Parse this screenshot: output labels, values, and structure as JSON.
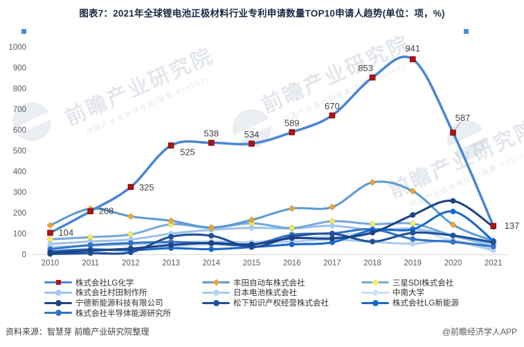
{
  "title": "图表7：2021年全球锂电池正极材料行业专利申请数量TOP10申请人趋势(单位：项，%)",
  "source": "资料来源：智慧芽 前瞻产业研究院整理",
  "credit": "@前瞻经济学人APP",
  "watermark": {
    "brand": "前瞻产业研究院",
    "sub": "中国产业咨询领导者(股票:839599)"
  },
  "chart_data": {
    "type": "line",
    "title": "2021年全球锂电池正极材料行业专利申请数量TOP10申请人趋势",
    "unit": "项，%",
    "x": [
      2010,
      2011,
      2012,
      2013,
      2014,
      2015,
      2016,
      2017,
      2018,
      2019,
      2020,
      2021
    ],
    "xlabel": "",
    "ylabel": "",
    "ylim": [
      0,
      1000
    ],
    "ytick_step": 100,
    "grid": false,
    "legend_position": "bottom",
    "smooth": true,
    "series": [
      {
        "name": "株式会社LG化学",
        "line_color": "#4a86d4",
        "marker": "square",
        "marker_color": "#b01311",
        "values": [
          104,
          208,
          325,
          525,
          538,
          534,
          589,
          670,
          853,
          941,
          587,
          137
        ],
        "show_labels": true
      },
      {
        "name": "丰田自动车株式会社",
        "line_color": "#5b9bd5",
        "marker": "diamond",
        "marker_color": "#efa431",
        "values": [
          140,
          220,
          183,
          162,
          130,
          166,
          221,
          228,
          347,
          305,
          143,
          65
        ]
      },
      {
        "name": "三星SDI株式会社",
        "line_color": "#74a9dd",
        "marker": "diamond",
        "marker_color": "#f7ef52",
        "values": [
          73,
          83,
          96,
          145,
          128,
          150,
          127,
          160,
          146,
          148,
          91,
          55
        ]
      },
      {
        "name": "株式会社村田制作所",
        "line_color": "#9cc2e8",
        "marker": "circle",
        "marker_color": "#a9cbee",
        "values": [
          50,
          62,
          72,
          100,
          118,
          128,
          125,
          138,
          118,
          123,
          88,
          40
        ]
      },
      {
        "name": "日本电池株式会社",
        "line_color": "#aacbee",
        "marker": "circle",
        "marker_color": "#b6d3f1",
        "values": [
          35,
          42,
          48,
          55,
          62,
          58,
          62,
          72,
          60,
          52,
          66,
          22
        ]
      },
      {
        "name": "中南大学",
        "line_color": "#c9def5",
        "marker": "circle",
        "marker_color": "#d3e4f7",
        "values": [
          5,
          15,
          25,
          38,
          48,
          58,
          78,
          88,
          108,
          118,
          66,
          18
        ]
      },
      {
        "name": "宁德新能源科技有限公司",
        "line_color": "#1b4385",
        "marker": "circle",
        "marker_color": "#1b4385",
        "values": [
          8,
          18,
          28,
          45,
          55,
          48,
          78,
          77,
          105,
          190,
          258,
          133
        ]
      },
      {
        "name": "松下知识产权经营株式会社",
        "line_color": "#20509a",
        "marker": "circle",
        "marker_color": "#20509a",
        "values": [
          2,
          6,
          10,
          85,
          90,
          35,
          85,
          100,
          62,
          104,
          91,
          58
        ]
      },
      {
        "name": "株式会社LG新能源",
        "line_color": "#1a68ca",
        "marker": "circle",
        "marker_color": "#1a68ca",
        "values": [
          14,
          24,
          20,
          30,
          25,
          35,
          48,
          58,
          118,
          121,
          207,
          65
        ]
      },
      {
        "name": "株式会社半导体能源研究所",
        "line_color": "#3474c6",
        "marker": "circle",
        "marker_color": "#3474c6",
        "values": [
          25,
          45,
          55,
          60,
          52,
          45,
          95,
          101,
          121,
          74,
          60,
          38
        ]
      }
    ],
    "label_offsets": [
      [
        12,
        4,
        "s"
      ],
      [
        12,
        4,
        "s"
      ],
      [
        12,
        5,
        "s"
      ],
      [
        13,
        14,
        "s"
      ],
      [
        0,
        -9,
        "m"
      ],
      [
        0,
        -9,
        "m"
      ],
      [
        0,
        -9,
        "m"
      ],
      [
        0,
        -9,
        "m"
      ],
      [
        -10,
        -9,
        "m"
      ],
      [
        0,
        -11,
        "m"
      ],
      [
        14,
        -17,
        "m"
      ],
      [
        16,
        4,
        "s"
      ]
    ],
    "leader_index": 10
  }
}
